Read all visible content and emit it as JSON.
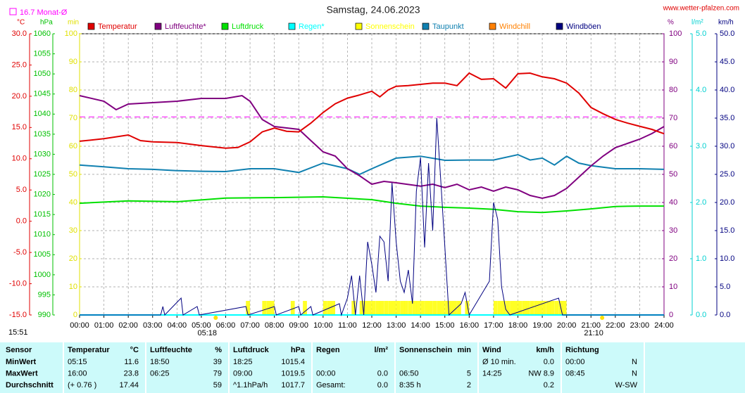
{
  "chart_data": {
    "type": "line",
    "title": "Samstag, 24.06.2023",
    "source": "www.wetter-pfalzen.com",
    "time_label": "15:51",
    "grid": true,
    "reference": {
      "label": "16.7 Monat-Ø",
      "value": 16.7,
      "color": "#ff00ff"
    },
    "sun_markers": [
      {
        "label": "05:18",
        "x": 5.3
      },
      {
        "label": "21:10",
        "x": 21.17
      }
    ],
    "xlim": [
      0,
      24
    ],
    "xticks": [
      {
        "value": 0,
        "label": "00:00"
      },
      {
        "value": 1,
        "label": "01:00"
      },
      {
        "value": 2,
        "label": "02:00"
      },
      {
        "value": 3,
        "label": "03:00"
      },
      {
        "value": 4,
        "label": "04:00"
      },
      {
        "value": 5,
        "label": "05:00"
      },
      {
        "value": 6,
        "label": "06:00"
      },
      {
        "value": 7,
        "label": "07:00"
      },
      {
        "value": 8,
        "label": "08:00"
      },
      {
        "value": 9,
        "label": "09:00"
      },
      {
        "value": 10,
        "label": "10:00"
      },
      {
        "value": 11,
        "label": "11:00"
      },
      {
        "value": 12,
        "label": "12:00"
      },
      {
        "value": 13,
        "label": "13:00"
      },
      {
        "value": 14,
        "label": "14:00"
      },
      {
        "value": 15,
        "label": "15:00"
      },
      {
        "value": 16,
        "label": "16:00"
      },
      {
        "value": 17,
        "label": "17:00"
      },
      {
        "value": 18,
        "label": "18:00"
      },
      {
        "value": 19,
        "label": "19:00"
      },
      {
        "value": 20,
        "label": "20:00"
      },
      {
        "value": 21,
        "label": "21:00"
      },
      {
        "value": 22,
        "label": "22:00"
      },
      {
        "value": 23,
        "label": "23:00"
      },
      {
        "value": 24,
        "label": "24:00"
      }
    ],
    "axes": {
      "temp": {
        "label": "°C",
        "color": "#e00000",
        "lim": [
          -15,
          30
        ],
        "ticks": [
          {
            "value": -15,
            "label": "-15.0"
          },
          {
            "value": -10,
            "label": "-10.0"
          },
          {
            "value": -5,
            "label": "-5.0"
          },
          {
            "value": 0,
            "label": "0.0"
          },
          {
            "value": 5,
            "label": "5.0"
          },
          {
            "value": 10,
            "label": "10.0"
          },
          {
            "value": 15,
            "label": "15.0"
          },
          {
            "value": 20,
            "label": "20.0"
          },
          {
            "value": 25,
            "label": "25.0"
          },
          {
            "value": 30,
            "label": "30.0"
          }
        ]
      },
      "pressure": {
        "label": "hPa",
        "color": "#00c000",
        "lim": [
          990,
          1060
        ],
        "ticks": [
          990,
          995,
          1000,
          1005,
          1010,
          1015,
          1020,
          1025,
          1030,
          1035,
          1040,
          1045,
          1050,
          1055,
          1060
        ]
      },
      "sun": {
        "label": "min",
        "color": "#e0e000",
        "lim": [
          0,
          100
        ],
        "ticks": [
          0,
          10,
          20,
          30,
          40,
          50,
          60,
          70,
          80,
          90,
          100
        ]
      },
      "humidity": {
        "label": "%",
        "color": "#800080",
        "lim": [
          0,
          100
        ],
        "ticks": [
          0,
          10,
          20,
          30,
          40,
          50,
          60,
          70,
          80,
          90,
          100
        ]
      },
      "rain": {
        "label": "l/m²",
        "color": "#00d0d0",
        "lim": [
          0,
          5
        ],
        "ticks": [
          {
            "value": 0,
            "label": "0.0"
          },
          {
            "value": 1,
            "label": "1.0"
          },
          {
            "value": 2,
            "label": "2.0"
          },
          {
            "value": 3,
            "label": "3.0"
          },
          {
            "value": 4,
            "label": "4.0"
          },
          {
            "value": 5,
            "label": "5.0"
          }
        ]
      },
      "wind": {
        "label": "km/h",
        "color": "#000080",
        "lim": [
          0,
          50
        ],
        "ticks": [
          {
            "value": 0,
            "label": "0.0"
          },
          {
            "value": 5,
            "label": "5.0"
          },
          {
            "value": 10,
            "label": "10.0"
          },
          {
            "value": 15,
            "label": "15.0"
          },
          {
            "value": 20,
            "label": "20.0"
          },
          {
            "value": 25,
            "label": "25.0"
          },
          {
            "value": 30,
            "label": "30.0"
          },
          {
            "value": 35,
            "label": "35.0"
          },
          {
            "value": 40,
            "label": "40.0"
          },
          {
            "value": 45,
            "label": "45.0"
          },
          {
            "value": 50,
            "label": "50.0"
          }
        ]
      }
    },
    "series": [
      {
        "name": "Temperatur",
        "color": "#e00000",
        "axis": "temp",
        "x": [
          0,
          1,
          2,
          2.5,
          3,
          4,
          5,
          6,
          6.5,
          7,
          7.5,
          8,
          8.5,
          9,
          9.5,
          10,
          10.5,
          11,
          11.5,
          12,
          12.33,
          12.67,
          13,
          13.5,
          14,
          14.5,
          15,
          15.5,
          16,
          16.5,
          17,
          17.5,
          18,
          18.5,
          19,
          19.5,
          20,
          20.5,
          21,
          21.5,
          22,
          22.5,
          23,
          23.5,
          24
        ],
        "values": [
          12.8,
          13.2,
          13.8,
          12.9,
          12.7,
          12.6,
          12.1,
          11.7,
          11.8,
          12.7,
          14.3,
          14.9,
          14.4,
          14.3,
          15.7,
          17.4,
          18.8,
          19.7,
          20.2,
          20.8,
          19.9,
          21.0,
          21.6,
          21.7,
          21.9,
          22.1,
          22.1,
          21.7,
          23.7,
          22.7,
          22.8,
          21.3,
          23.6,
          23.7,
          23.1,
          22.8,
          22.1,
          20.5,
          18.2,
          17.2,
          16.3,
          15.7,
          15.2,
          14.7,
          14.0
        ]
      },
      {
        "name": "Luftfeuchte*",
        "color": "#800080",
        "axis": "humidity",
        "x": [
          0,
          1,
          1.5,
          2,
          3,
          4,
          5,
          6,
          6.67,
          7,
          7.5,
          8,
          9,
          9.5,
          10,
          10.5,
          11,
          11.5,
          12,
          12.5,
          13,
          14,
          14.5,
          15,
          15.5,
          16,
          16.5,
          17,
          17.5,
          18,
          18.5,
          19,
          19.5,
          20,
          20.5,
          21,
          21.5,
          22,
          22.5,
          23,
          23.5,
          24
        ],
        "values": [
          78,
          76,
          73,
          75,
          75.5,
          76,
          77,
          77,
          78,
          76,
          69.5,
          67,
          66,
          62,
          58,
          56.5,
          52,
          49.5,
          46.5,
          47.5,
          47,
          45.8,
          46.5,
          45.3,
          46.5,
          44.5,
          45.5,
          44,
          45.5,
          44.5,
          42.5,
          41.5,
          42.5,
          45,
          49,
          53,
          56.5,
          59.5,
          61,
          62.5,
          64.5,
          67
        ]
      },
      {
        "name": "Luftdruck",
        "color": "#00e000",
        "axis": "pressure",
        "x": [
          0,
          2,
          4,
          6,
          8,
          10,
          12,
          13,
          14,
          15,
          16,
          17,
          18,
          19,
          20,
          21,
          22,
          23,
          24
        ],
        "values": [
          1017.8,
          1018.4,
          1018.2,
          1019.1,
          1019.2,
          1019.4,
          1018.7,
          1017.8,
          1017.1,
          1016.8,
          1016.6,
          1016.3,
          1015.7,
          1015.5,
          1015.9,
          1016.4,
          1017.0,
          1017.1,
          1017.1
        ]
      },
      {
        "name": "Regen*",
        "color": "#00ffff",
        "axis": "rain",
        "x": [
          0,
          24
        ],
        "values": [
          0,
          0
        ]
      },
      {
        "name": "Sonnenschein",
        "color": "#ffff00",
        "axis": "sun",
        "style": "bar",
        "x": [
          6.83,
          7.5,
          7.67,
          7.83,
          8.67,
          9.17,
          10,
          10.17,
          10.33,
          11.17,
          11.5,
          11.67,
          11.83,
          12,
          12.17,
          12.33,
          12.5,
          12.67,
          12.83,
          13,
          13.17,
          13.33,
          13.5,
          13.67,
          13.83,
          14,
          14.17,
          14.33,
          14.5,
          14.67,
          14.83,
          15,
          15.17,
          15.33,
          15.5,
          15.83,
          17,
          17.17,
          17.33,
          17.5,
          17.67,
          17.83,
          18,
          18.17,
          18.33,
          18.5,
          18.67,
          18.83,
          19,
          19.17,
          19.33,
          19.5,
          19.67,
          19.83
        ],
        "values": [
          5,
          5,
          5,
          5,
          5,
          5,
          5,
          5,
          5,
          5,
          5,
          5,
          5,
          5,
          5,
          5,
          5,
          5,
          5,
          5,
          5,
          5,
          5,
          5,
          5,
          5,
          5,
          5,
          5,
          5,
          5,
          5,
          5,
          5,
          5,
          5,
          5,
          5,
          5,
          5,
          5,
          5,
          5,
          5,
          5,
          5,
          5,
          5,
          5,
          5,
          5,
          5,
          5,
          5
        ]
      },
      {
        "name": "Taupunkt",
        "color": "#1080b0",
        "axis": "temp",
        "x": [
          0,
          1,
          2,
          3,
          4,
          5,
          6,
          7,
          8,
          9,
          10,
          11,
          11.5,
          12,
          13,
          14,
          15,
          16,
          17,
          18,
          18.5,
          19,
          19.5,
          20,
          20.5,
          21,
          22,
          23,
          24
        ],
        "values": [
          9.0,
          8.7,
          8.4,
          8.3,
          8.1,
          8.0,
          7.95,
          8.4,
          8.4,
          7.8,
          9.3,
          8.4,
          7.5,
          8.4,
          10.1,
          10.4,
          9.75,
          9.8,
          9.8,
          10.65,
          9.8,
          10.1,
          9.0,
          10.4,
          9.3,
          8.9,
          8.4,
          8.4,
          8.3
        ]
      },
      {
        "name": "Windchill",
        "color": "#ff8000"
      },
      {
        "name": "Windböen",
        "color": "#000080",
        "axis": "wind",
        "x": [
          0,
          3.33,
          3.42,
          3.5,
          4.17,
          4.25,
          4.83,
          4.92,
          6.83,
          6.92,
          8,
          8.08,
          9,
          9.08,
          9.5,
          9.58,
          10.67,
          10.75,
          11,
          11.17,
          11.33,
          11.5,
          11.67,
          11.83,
          12,
          12.17,
          12.33,
          12.5,
          12.67,
          12.83,
          13,
          13.17,
          13.33,
          13.5,
          13.67,
          13.83,
          14,
          14.17,
          14.33,
          14.5,
          14.67,
          14.83,
          15,
          15.17,
          15.67,
          15.83,
          16,
          16.83,
          17,
          17.17,
          17.33,
          17.5,
          17.67,
          19.67,
          19.83,
          24
        ],
        "values": [
          0,
          0,
          1.5,
          0,
          3,
          0,
          1.5,
          0,
          1.5,
          0,
          1.5,
          0,
          1.5,
          0,
          1.5,
          0,
          2,
          0,
          3,
          7,
          0,
          7,
          0,
          13,
          9,
          4,
          14,
          13,
          6,
          23.5,
          13,
          6,
          4,
          8,
          2,
          22,
          28,
          12,
          27,
          15,
          35,
          24,
          12,
          0,
          2,
          4,
          0,
          6,
          20,
          17,
          5,
          1,
          0,
          3,
          0,
          0
        ]
      }
    ]
  },
  "table": {
    "header": [
      [
        "Sensor"
      ],
      [
        "Temperatur",
        "°C"
      ],
      [
        "Luftfeuchte",
        "%"
      ],
      [
        "Luftdruck",
        "hPa"
      ],
      [
        "Regen",
        "l/m²"
      ],
      [
        "Sonnenschein",
        "min"
      ],
      [
        "Wind",
        "km/h"
      ],
      [
        "Richtung"
      ]
    ],
    "rows": [
      {
        "label": "MinWert",
        "cells": [
          [
            "05:15",
            "11.6"
          ],
          [
            "18:50",
            "39"
          ],
          [
            "18:25",
            "1015.4"
          ],
          [
            null,
            null
          ],
          [
            null,
            null
          ],
          [
            "Ø 10 min.",
            "0.0"
          ],
          [
            "00:00",
            "N"
          ]
        ]
      },
      {
        "label": "MaxWert",
        "cells": [
          [
            "16:00",
            "23.8"
          ],
          [
            "06:25",
            "79"
          ],
          [
            "09:00",
            "1019.5"
          ],
          [
            "00:00",
            "0.0"
          ],
          [
            "06:50",
            "5"
          ],
          [
            "14:25",
            "NW 8.9"
          ],
          [
            "08:45",
            "N"
          ]
        ]
      },
      {
        "label": "Durchschnitt",
        "cells": [
          [
            "(+ 0.76 )",
            "17.44"
          ],
          [
            null,
            "59"
          ],
          [
            "^1.1hPa/h",
            "1017.7"
          ],
          [
            "Gesamt:",
            "0.0"
          ],
          [
            "8:35 h",
            "2"
          ],
          [
            null,
            "0.2"
          ],
          [
            null,
            "W-SW"
          ]
        ]
      }
    ]
  }
}
